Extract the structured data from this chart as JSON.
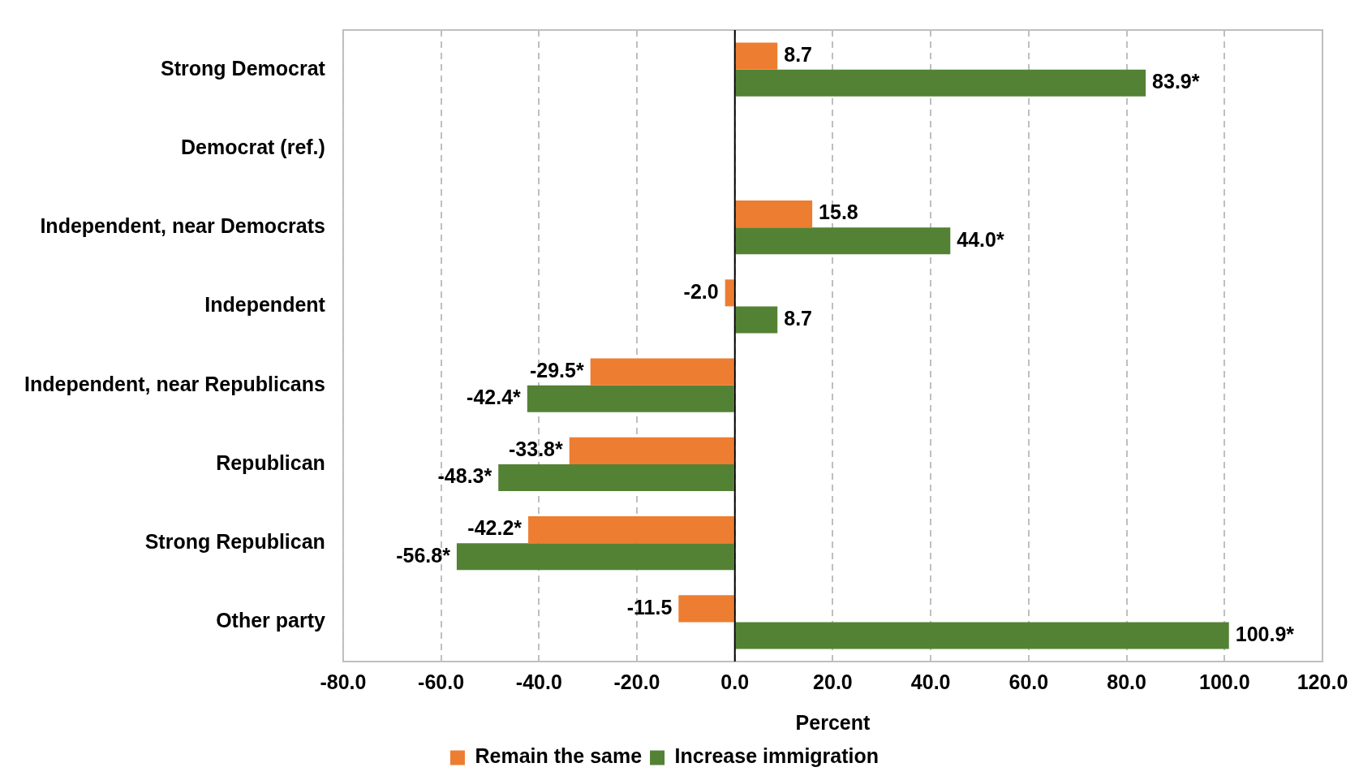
{
  "chart_data": {
    "type": "bar",
    "orientation": "horizontal",
    "xlabel": "Percent",
    "categories": [
      "Strong Democrat",
      "Democrat (ref.)",
      "Independent, near Democrats",
      "Independent",
      "Independent, near Republicans",
      "Republican",
      "Strong Republican",
      "Other party"
    ],
    "series": [
      {
        "name": "Remain the same",
        "color": "#ed7d31",
        "values": [
          8.7,
          null,
          15.8,
          -2.0,
          -29.5,
          -33.8,
          -42.2,
          -11.5
        ],
        "value_labels": [
          "8.7",
          null,
          "15.8",
          "-2.0",
          "-29.5*",
          "-33.8*",
          "-42.2*",
          "-11.5"
        ]
      },
      {
        "name": "Increase immigration",
        "color": "#548235",
        "values": [
          83.9,
          null,
          44.0,
          8.7,
          -42.4,
          -48.3,
          -56.8,
          100.9
        ],
        "value_labels": [
          "83.9*",
          null,
          "44.0*",
          "8.7",
          "-42.4*",
          "-48.3*",
          "-56.8*",
          "100.9*"
        ]
      }
    ],
    "xlim": [
      -80,
      120
    ],
    "xticks": [
      {
        "value": -80,
        "label": "-80.0"
      },
      {
        "value": -60,
        "label": "-60.0"
      },
      {
        "value": -40,
        "label": "-40.0"
      },
      {
        "value": -20,
        "label": "-20.0"
      },
      {
        "value": 0,
        "label": "0.0"
      },
      {
        "value": 20,
        "label": "20.0"
      },
      {
        "value": 40,
        "label": "40.0"
      },
      {
        "value": 60,
        "label": "60.0"
      },
      {
        "value": 80,
        "label": "80.0"
      },
      {
        "value": 100,
        "label": "100.0"
      },
      {
        "value": 120,
        "label": "120.0"
      }
    ],
    "grid": "x",
    "legend": "bottom"
  }
}
